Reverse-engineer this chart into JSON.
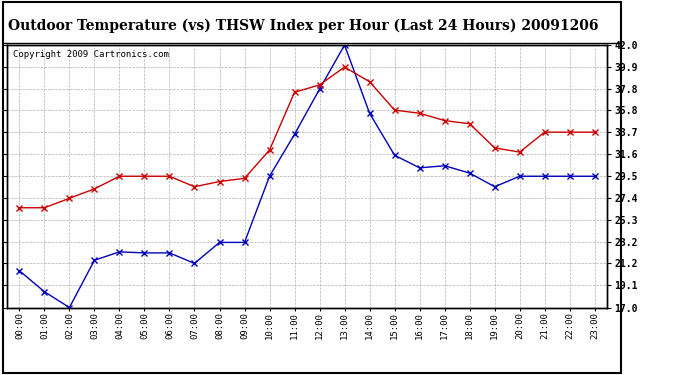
{
  "title": "Outdoor Temperature (vs) THSW Index per Hour (Last 24 Hours) 20091206",
  "copyright": "Copyright 2009 Cartronics.com",
  "hours": [
    "00:00",
    "01:00",
    "02:00",
    "03:00",
    "04:00",
    "05:00",
    "06:00",
    "07:00",
    "08:00",
    "09:00",
    "10:00",
    "11:00",
    "12:00",
    "13:00",
    "14:00",
    "15:00",
    "16:00",
    "17:00",
    "18:00",
    "19:00",
    "20:00",
    "21:00",
    "22:00",
    "23:00"
  ],
  "blue_data": [
    20.5,
    18.5,
    17.0,
    21.5,
    22.3,
    22.2,
    22.2,
    21.2,
    23.2,
    23.2,
    29.5,
    33.5,
    37.8,
    42.0,
    35.5,
    31.5,
    30.3,
    30.5,
    29.8,
    28.5,
    29.5,
    29.5,
    29.5,
    29.5
  ],
  "red_data": [
    26.5,
    26.5,
    27.4,
    28.3,
    29.5,
    29.5,
    29.5,
    28.5,
    29.0,
    29.3,
    32.0,
    37.5,
    38.2,
    39.9,
    38.5,
    35.8,
    35.5,
    34.8,
    34.5,
    32.2,
    31.8,
    33.7,
    33.7,
    33.7
  ],
  "ylim": [
    17.0,
    42.0
  ],
  "yticks": [
    17.0,
    19.1,
    21.2,
    23.2,
    25.3,
    27.4,
    29.5,
    31.6,
    33.7,
    35.8,
    37.8,
    39.9,
    42.0
  ],
  "blue_color": "#0000bb",
  "red_color": "#cc0000",
  "bg_color": "#ffffff",
  "grid_color": "#b0b0b0",
  "title_fontsize": 10,
  "copyright_fontsize": 6.5
}
